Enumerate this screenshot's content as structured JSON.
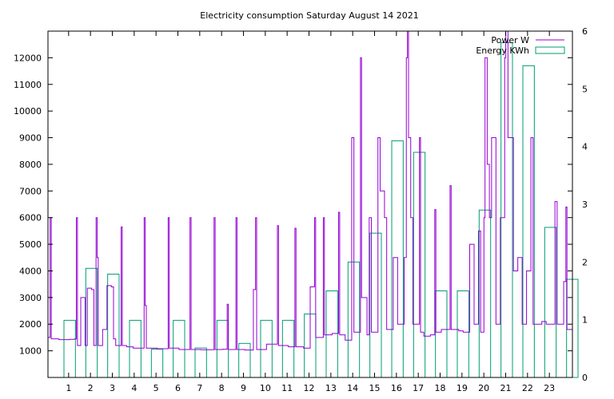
{
  "chart_data": {
    "type": "line",
    "title": "Electricity consumption Saturday August 14 2021",
    "xlabel": "",
    "ylabel": "",
    "xlim": [
      0,
      24
    ],
    "ylim": [
      0,
      13000
    ],
    "y2lim": [
      0,
      6
    ],
    "x_ticks": [
      1,
      2,
      3,
      4,
      5,
      6,
      7,
      8,
      9,
      10,
      11,
      12,
      13,
      14,
      15,
      16,
      17,
      18,
      19,
      20,
      21,
      22,
      23
    ],
    "y_ticks": [
      1000,
      2000,
      3000,
      4000,
      5000,
      6000,
      7000,
      8000,
      9000,
      10000,
      11000,
      12000
    ],
    "y2_ticks": [
      0,
      1,
      2,
      3,
      4,
      5,
      6
    ],
    "legend_position": "top-right",
    "grid": false,
    "colors": {
      "power": "#9400d3",
      "energy": "#009e73"
    },
    "series": [
      {
        "name": "Power W",
        "axis": "left",
        "style": "steps",
        "points": [
          [
            0,
            1500
          ],
          [
            0.1,
            6000
          ],
          [
            0.15,
            1450
          ],
          [
            0.5,
            1420
          ],
          [
            1,
            1430
          ],
          [
            1.2,
            1440
          ],
          [
            1.3,
            6000
          ],
          [
            1.35,
            1200
          ],
          [
            1.5,
            3000
          ],
          [
            1.7,
            1200
          ],
          [
            1.8,
            3350
          ],
          [
            2.0,
            3300
          ],
          [
            2.1,
            1200
          ],
          [
            2.2,
            6000
          ],
          [
            2.25,
            4500
          ],
          [
            2.3,
            1200
          ],
          [
            2.5,
            1800
          ],
          [
            2.7,
            3450
          ],
          [
            2.9,
            3400
          ],
          [
            3.0,
            1450
          ],
          [
            3.1,
            1200
          ],
          [
            3.35,
            5650
          ],
          [
            3.4,
            1200
          ],
          [
            3.6,
            1150
          ],
          [
            3.9,
            1100
          ],
          [
            4.4,
            6000
          ],
          [
            4.45,
            2700
          ],
          [
            4.5,
            1100
          ],
          [
            5.0,
            1080
          ],
          [
            5.5,
            6000
          ],
          [
            5.55,
            1100
          ],
          [
            6.0,
            1050
          ],
          [
            6.5,
            6000
          ],
          [
            6.55,
            1050
          ],
          [
            7.0,
            1040
          ],
          [
            7.6,
            6000
          ],
          [
            7.65,
            1050
          ],
          [
            8.0,
            1060
          ],
          [
            8.2,
            2750
          ],
          [
            8.25,
            1050
          ],
          [
            8.6,
            6000
          ],
          [
            8.65,
            1050
          ],
          [
            9.0,
            1030
          ],
          [
            9.4,
            3300
          ],
          [
            9.5,
            6000
          ],
          [
            9.55,
            1050
          ],
          [
            10.0,
            1250
          ],
          [
            10.5,
            5700
          ],
          [
            10.55,
            1200
          ],
          [
            11.0,
            1150
          ],
          [
            11.3,
            5600
          ],
          [
            11.35,
            1150
          ],
          [
            11.7,
            1100
          ],
          [
            12.0,
            3400
          ],
          [
            12.2,
            6000
          ],
          [
            12.25,
            1500
          ],
          [
            12.6,
            6000
          ],
          [
            12.65,
            1600
          ],
          [
            13.0,
            1650
          ],
          [
            13.3,
            6200
          ],
          [
            13.35,
            1600
          ],
          [
            13.6,
            1400
          ],
          [
            13.9,
            9000
          ],
          [
            14.0,
            1700
          ],
          [
            14.3,
            12000
          ],
          [
            14.35,
            3000
          ],
          [
            14.6,
            1600
          ],
          [
            14.7,
            6000
          ],
          [
            14.8,
            1700
          ],
          [
            15.1,
            9000
          ],
          [
            15.2,
            7000
          ],
          [
            15.4,
            6000
          ],
          [
            15.5,
            1800
          ],
          [
            15.8,
            4500
          ],
          [
            16.0,
            2000
          ],
          [
            16.3,
            4500
          ],
          [
            16.4,
            12000
          ],
          [
            16.45,
            13000
          ],
          [
            16.5,
            9000
          ],
          [
            16.6,
            6000
          ],
          [
            16.7,
            2000
          ],
          [
            17.0,
            9000
          ],
          [
            17.05,
            1700
          ],
          [
            17.2,
            1550
          ],
          [
            17.5,
            1600
          ],
          [
            17.7,
            6300
          ],
          [
            17.75,
            1700
          ],
          [
            18.0,
            1800
          ],
          [
            18.4,
            7200
          ],
          [
            18.45,
            1800
          ],
          [
            18.8,
            1750
          ],
          [
            19.0,
            1700
          ],
          [
            19.3,
            5000
          ],
          [
            19.5,
            2000
          ],
          [
            19.7,
            5500
          ],
          [
            19.8,
            1700
          ],
          [
            19.95,
            6000
          ],
          [
            20.0,
            12000
          ],
          [
            20.1,
            8000
          ],
          [
            20.2,
            6000
          ],
          [
            20.3,
            9000
          ],
          [
            20.5,
            2000
          ],
          [
            20.7,
            6000
          ],
          [
            20.9,
            12000
          ],
          [
            20.95,
            13000
          ],
          [
            21.05,
            9000
          ],
          [
            21.3,
            4000
          ],
          [
            21.5,
            4500
          ],
          [
            21.7,
            2000
          ],
          [
            21.9,
            4000
          ],
          [
            22.1,
            9000
          ],
          [
            22.2,
            2000
          ],
          [
            22.6,
            2100
          ],
          [
            22.8,
            2000
          ],
          [
            23.2,
            6600
          ],
          [
            23.3,
            2000
          ],
          [
            23.6,
            3600
          ],
          [
            23.7,
            6400
          ],
          [
            23.75,
            1800
          ],
          [
            24.0,
            1800
          ]
        ]
      },
      {
        "name": "Energy KWh",
        "axis": "right",
        "style": "boxes",
        "x": [
          0,
          1,
          2,
          3,
          4,
          5,
          6,
          7,
          8,
          9,
          10,
          11,
          12,
          13,
          14,
          15,
          16,
          17,
          18,
          19,
          20,
          21,
          22,
          23
        ],
        "values": [
          0.99,
          1.89,
          1.79,
          0.99,
          0.49,
          0.99,
          0.51,
          0.99,
          0.59,
          0.99,
          0.99,
          1.1,
          1.5,
          2.0,
          2.5,
          4.1,
          3.9,
          1.5,
          1.5,
          2.9,
          5.8,
          5.4,
          2.6,
          1.7
        ]
      }
    ]
  }
}
